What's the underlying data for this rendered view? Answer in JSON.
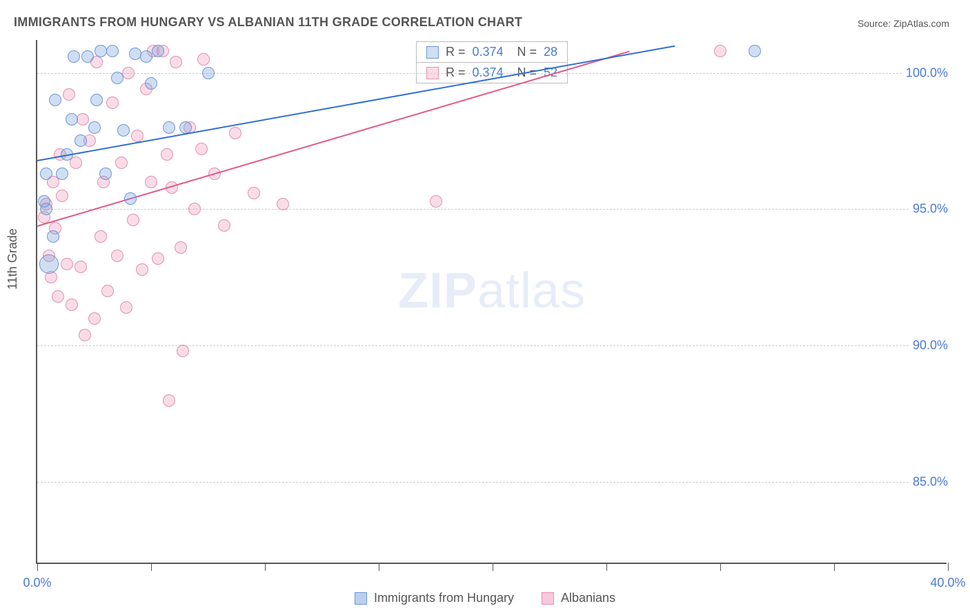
{
  "title": "IMMIGRANTS FROM HUNGARY VS ALBANIAN 11TH GRADE CORRELATION CHART",
  "source_label": "Source:",
  "source_value": "ZipAtlas.com",
  "ylabel": "11th Grade",
  "watermark_bold": "ZIP",
  "watermark_rest": "atlas",
  "chart": {
    "type": "scatter",
    "xlim": [
      0,
      40
    ],
    "ylim": [
      82,
      101.2
    ],
    "xticks": [
      0,
      5,
      10,
      15,
      20,
      25,
      30,
      35,
      40
    ],
    "xtick_labels": {
      "0": "0.0%",
      "40": "40.0%"
    },
    "yticks": [
      85,
      90,
      95,
      100
    ],
    "ytick_labels": [
      "85.0%",
      "90.0%",
      "95.0%",
      "100.0%"
    ],
    "background_color": "#ffffff",
    "grid_color": "#cccccc",
    "axis_color": "#555555",
    "text_color": "#555555",
    "value_color": "#4a7bd0",
    "title_fontsize": 18,
    "tick_fontsize": 18,
    "marker_radius": 9,
    "marker_radius_large": 14,
    "line_width": 2,
    "series": [
      {
        "name": "Immigrants from Hungary",
        "fill": "rgba(120,160,220,0.35)",
        "stroke": "#6a97d8",
        "line_color": "#2f6fd0",
        "R": "0.374",
        "N": "28",
        "trend": {
          "x1": 0,
          "y1": 96.8,
          "x2": 28,
          "y2": 101.0
        },
        "points": [
          {
            "x": 0.3,
            "y": 95.3
          },
          {
            "x": 0.4,
            "y": 95.0
          },
          {
            "x": 0.4,
            "y": 96.3
          },
          {
            "x": 0.5,
            "y": 93.0,
            "r": 14
          },
          {
            "x": 0.7,
            "y": 94.0
          },
          {
            "x": 0.8,
            "y": 99.0
          },
          {
            "x": 1.1,
            "y": 96.3
          },
          {
            "x": 1.3,
            "y": 97.0
          },
          {
            "x": 1.5,
            "y": 98.3
          },
          {
            "x": 1.6,
            "y": 100.6
          },
          {
            "x": 1.9,
            "y": 97.5
          },
          {
            "x": 2.2,
            "y": 100.6
          },
          {
            "x": 2.5,
            "y": 98.0
          },
          {
            "x": 2.6,
            "y": 99.0
          },
          {
            "x": 2.8,
            "y": 100.8
          },
          {
            "x": 3.0,
            "y": 96.3
          },
          {
            "x": 3.3,
            "y": 100.8
          },
          {
            "x": 3.5,
            "y": 99.8
          },
          {
            "x": 3.8,
            "y": 97.9
          },
          {
            "x": 4.1,
            "y": 95.4
          },
          {
            "x": 4.3,
            "y": 100.7
          },
          {
            "x": 4.8,
            "y": 100.6
          },
          {
            "x": 5.0,
            "y": 99.6
          },
          {
            "x": 5.3,
            "y": 100.8
          },
          {
            "x": 5.8,
            "y": 98.0
          },
          {
            "x": 6.5,
            "y": 98.0
          },
          {
            "x": 7.5,
            "y": 100.0
          },
          {
            "x": 31.5,
            "y": 100.8
          }
        ]
      },
      {
        "name": "Albanians",
        "fill": "rgba(235,140,175,0.30)",
        "stroke": "#e38fb0",
        "line_color": "#e05a8a",
        "R": "0.374",
        "N": "52",
        "trend": {
          "x1": 0,
          "y1": 94.4,
          "x2": 26,
          "y2": 100.8
        },
        "points": [
          {
            "x": 0.3,
            "y": 94.7
          },
          {
            "x": 0.4,
            "y": 95.2
          },
          {
            "x": 0.5,
            "y": 93.3
          },
          {
            "x": 0.6,
            "y": 92.5
          },
          {
            "x": 0.7,
            "y": 96.0
          },
          {
            "x": 0.8,
            "y": 94.3
          },
          {
            "x": 0.9,
            "y": 91.8
          },
          {
            "x": 1.0,
            "y": 97.0
          },
          {
            "x": 1.1,
            "y": 95.5
          },
          {
            "x": 1.3,
            "y": 93.0
          },
          {
            "x": 1.4,
            "y": 99.2
          },
          {
            "x": 1.5,
            "y": 91.5
          },
          {
            "x": 1.7,
            "y": 96.7
          },
          {
            "x": 1.9,
            "y": 92.9
          },
          {
            "x": 2.0,
            "y": 98.3
          },
          {
            "x": 2.1,
            "y": 90.4
          },
          {
            "x": 2.3,
            "y": 97.5
          },
          {
            "x": 2.5,
            "y": 91.0
          },
          {
            "x": 2.6,
            "y": 100.4
          },
          {
            "x": 2.8,
            "y": 94.0
          },
          {
            "x": 2.9,
            "y": 96.0
          },
          {
            "x": 3.1,
            "y": 92.0
          },
          {
            "x": 3.3,
            "y": 98.9
          },
          {
            "x": 3.5,
            "y": 93.3
          },
          {
            "x": 3.7,
            "y": 96.7
          },
          {
            "x": 3.9,
            "y": 91.4
          },
          {
            "x": 4.0,
            "y": 100.0
          },
          {
            "x": 4.2,
            "y": 94.6
          },
          {
            "x": 4.4,
            "y": 97.7
          },
          {
            "x": 4.6,
            "y": 92.8
          },
          {
            "x": 4.8,
            "y": 99.4
          },
          {
            "x": 5.0,
            "y": 96.0
          },
          {
            "x": 5.1,
            "y": 100.8
          },
          {
            "x": 5.3,
            "y": 93.2
          },
          {
            "x": 5.5,
            "y": 100.8
          },
          {
            "x": 5.7,
            "y": 97.0
          },
          {
            "x": 5.8,
            "y": 88.0
          },
          {
            "x": 5.9,
            "y": 95.8
          },
          {
            "x": 6.1,
            "y": 100.4
          },
          {
            "x": 6.3,
            "y": 93.6
          },
          {
            "x": 6.4,
            "y": 89.8
          },
          {
            "x": 6.7,
            "y": 98.0
          },
          {
            "x": 6.9,
            "y": 95.0
          },
          {
            "x": 7.2,
            "y": 97.2
          },
          {
            "x": 7.3,
            "y": 100.5
          },
          {
            "x": 7.8,
            "y": 96.3
          },
          {
            "x": 8.2,
            "y": 94.4
          },
          {
            "x": 8.7,
            "y": 97.8
          },
          {
            "x": 9.5,
            "y": 95.6
          },
          {
            "x": 10.8,
            "y": 95.2
          },
          {
            "x": 17.5,
            "y": 95.3
          },
          {
            "x": 30.0,
            "y": 100.8
          }
        ]
      }
    ]
  },
  "legend_bottom": [
    {
      "label": "Immigrants from Hungary",
      "fill": "rgba(120,160,220,0.5)",
      "stroke": "#6a97d8"
    },
    {
      "label": "Albanians",
      "fill": "rgba(235,140,175,0.45)",
      "stroke": "#e38fb0"
    }
  ]
}
